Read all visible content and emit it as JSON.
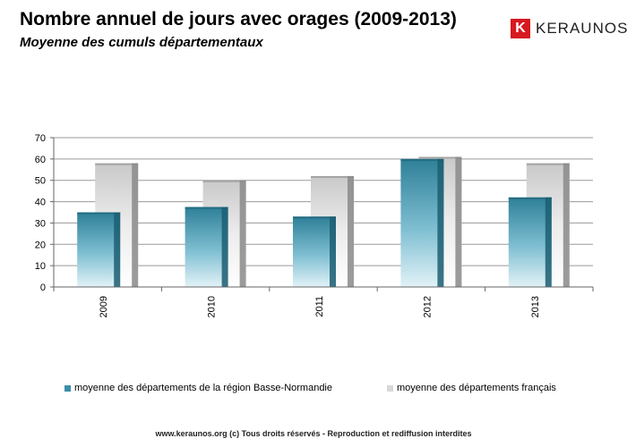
{
  "brand": {
    "mark": "K",
    "name": "KERAUNOS"
  },
  "footer": "www.keraunos.org  (c) Tous droits réservés - Reproduction et rediffusion interdites",
  "chart_data": {
    "type": "bar",
    "title": "Nombre annuel de jours avec orages (2009-2013)",
    "subtitle": "Moyenne des cumuls départementaux",
    "categories": [
      "2009",
      "2010",
      "2011",
      "2012",
      "2013"
    ],
    "series": [
      {
        "name": "moyenne des départements de la région Basse-Normandie",
        "values": [
          35,
          37.5,
          33,
          60,
          42
        ],
        "color": "#3a8ea8"
      },
      {
        "name": "moyenne des départements français",
        "values": [
          58,
          50,
          52,
          61,
          58
        ],
        "color": "#d8d8d8"
      }
    ],
    "yticks": [
      "0",
      "10",
      "20",
      "30",
      "40",
      "50",
      "60",
      "70"
    ],
    "ylim": [
      0,
      70
    ],
    "xlabel": "",
    "ylabel": "",
    "grid": true,
    "legend": "bottom"
  }
}
